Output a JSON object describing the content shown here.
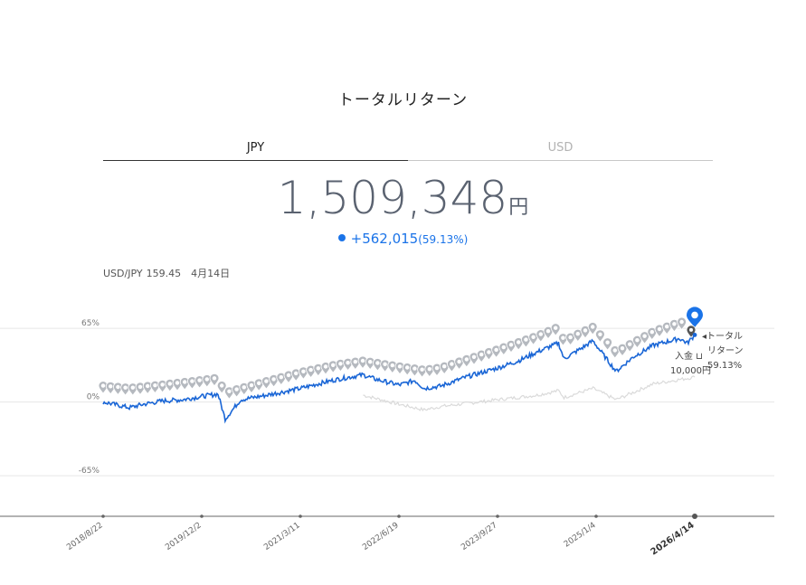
{
  "page": {
    "title": "トータルリターン"
  },
  "tabs": [
    {
      "label": "JPY",
      "active": true
    },
    {
      "label": "USD",
      "active": false
    }
  ],
  "summary": {
    "total_value": "1,509,348",
    "unit": "円",
    "gain": "+562,015",
    "gain_pct": "(59.13%)"
  },
  "fx": {
    "pair": "USD/JPY",
    "rate": "159.45",
    "date": "4月14日"
  },
  "colors": {
    "series": "#1a66d6",
    "deposit_marker": "#b5b9bf",
    "benchmark": "#dadada",
    "latest_marker": "#1a73e8"
  },
  "icons": {
    "deposit": "map-pin-icon",
    "latest": "map-pin-icon"
  },
  "chart_data": {
    "type": "line",
    "y_axis": {
      "tick_labels": [
        "65%",
        "0%",
        "-65%"
      ],
      "ticks": [
        65,
        0,
        -65
      ],
      "ylim": [
        -100,
        85
      ]
    },
    "x_axis": {
      "tick_labels": [
        "2018/8/22",
        "2019/12/2",
        "2021/3/11",
        "2022/6/19",
        "2023/9/27",
        "2025/1/4",
        "2026/4/14"
      ],
      "xlim": [
        "2018-08-22",
        "2026-04-14"
      ]
    },
    "series": [
      {
        "role": "total_return",
        "points": [
          [
            "2018-08-22",
            0
          ],
          [
            "2018-12-24",
            -5
          ],
          [
            "2019-03-01",
            -2
          ],
          [
            "2019-06-01",
            1
          ],
          [
            "2019-09-01",
            2
          ],
          [
            "2019-12-02",
            5
          ],
          [
            "2020-02-15",
            7
          ],
          [
            "2020-03-20",
            -15
          ],
          [
            "2020-06-01",
            2
          ],
          [
            "2020-10-01",
            6
          ],
          [
            "2021-03-11",
            12
          ],
          [
            "2021-06-01",
            16
          ],
          [
            "2021-09-01",
            20
          ],
          [
            "2021-12-31",
            24
          ],
          [
            "2022-03-01",
            20
          ],
          [
            "2022-06-19",
            15
          ],
          [
            "2022-09-01",
            19
          ],
          [
            "2022-10-15",
            12
          ],
          [
            "2023-01-01",
            14
          ],
          [
            "2023-05-01",
            22
          ],
          [
            "2023-09-27",
            30
          ],
          [
            "2023-12-31",
            36
          ],
          [
            "2024-03-31",
            44
          ],
          [
            "2024-07-10",
            52
          ],
          [
            "2024-08-05",
            38
          ],
          [
            "2024-11-01",
            48
          ],
          [
            "2024-12-20",
            54
          ],
          [
            "2025-01-04",
            50
          ],
          [
            "2025-04-08",
            27
          ],
          [
            "2025-06-30",
            40
          ],
          [
            "2025-10-01",
            50
          ],
          [
            "2026-02-01",
            56
          ],
          [
            "2026-03-10",
            52
          ],
          [
            "2026-04-14",
            59.13
          ]
        ]
      },
      {
        "role": "deposits",
        "points": [
          [
            "2018-08-22",
            10
          ],
          [
            "2018-12-24",
            8
          ],
          [
            "2019-06-01",
            11
          ],
          [
            "2019-12-02",
            15
          ],
          [
            "2020-02-15",
            17
          ],
          [
            "2020-03-20",
            4
          ],
          [
            "2020-10-01",
            14
          ],
          [
            "2021-03-11",
            22
          ],
          [
            "2021-09-01",
            29
          ],
          [
            "2021-12-31",
            32
          ],
          [
            "2022-06-19",
            27
          ],
          [
            "2022-10-15",
            24
          ],
          [
            "2023-01-01",
            26
          ],
          [
            "2023-09-27",
            42
          ],
          [
            "2024-03-31",
            54
          ],
          [
            "2024-07-10",
            62
          ],
          [
            "2024-08-05",
            50
          ],
          [
            "2024-12-20",
            62
          ],
          [
            "2025-04-08",
            40
          ],
          [
            "2025-10-01",
            58
          ],
          [
            "2026-02-01",
            66
          ],
          [
            "2026-04-14",
            68
          ]
        ]
      },
      {
        "role": "benchmark",
        "points": [
          [
            "2021-12-31",
            6
          ],
          [
            "2022-06-19",
            -2
          ],
          [
            "2022-10-15",
            -7
          ],
          [
            "2023-01-01",
            -4
          ],
          [
            "2023-09-27",
            2
          ],
          [
            "2024-03-31",
            6
          ],
          [
            "2024-07-10",
            10
          ],
          [
            "2024-08-05",
            4
          ],
          [
            "2024-12-20",
            12
          ],
          [
            "2025-04-08",
            2
          ],
          [
            "2025-10-01",
            16
          ],
          [
            "2026-04-14",
            22
          ]
        ]
      }
    ],
    "annotations": [
      {
        "lines": [
          "◂トータル",
          "リターン",
          "59.13%"
        ]
      },
      {
        "lines": [
          "入金 ⊔",
          "10,000円"
        ]
      }
    ]
  }
}
